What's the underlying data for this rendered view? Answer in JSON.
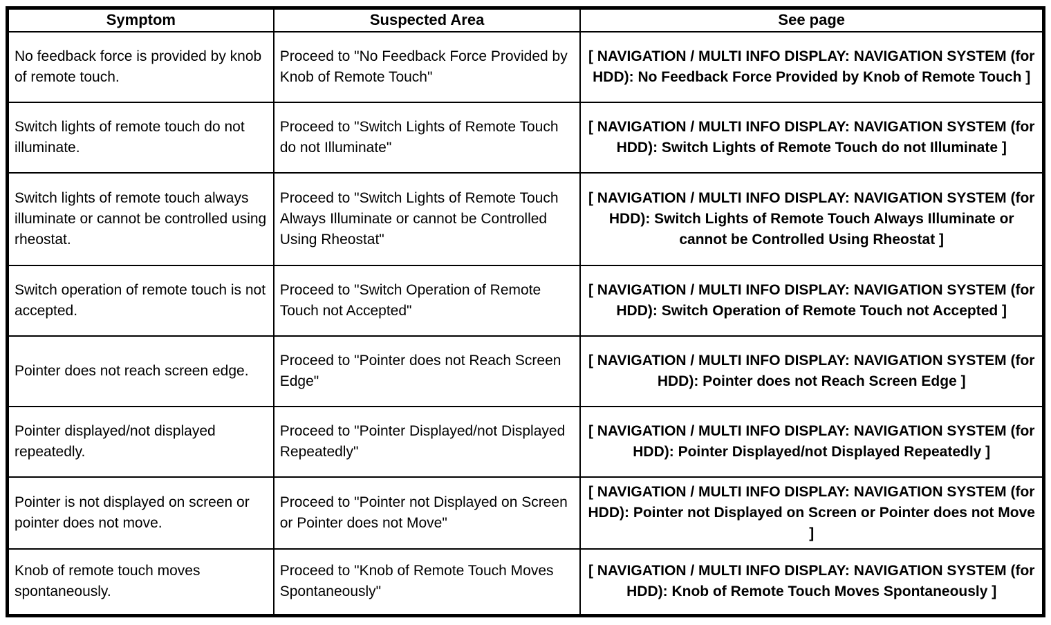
{
  "table": {
    "headers": {
      "symptom": "Symptom",
      "suspected_area": "Suspected Area",
      "see_page": "See page"
    },
    "rows": [
      {
        "symptom": "No feedback force is provided by knob of remote touch.",
        "suspected_area": "Proceed to \"No Feedback Force Provided by Knob of Remote Touch\"",
        "see_page": "[ NAVIGATION / MULTI INFO DISPLAY: NAVIGATION SYSTEM (for HDD): No Feedback Force Provided by Knob of Remote Touch ]"
      },
      {
        "symptom": "Switch lights of remote touch do not illuminate.",
        "suspected_area": "Proceed to \"Switch Lights of Remote Touch do not Illuminate\"",
        "see_page": "[ NAVIGATION / MULTI INFO DISPLAY: NAVIGATION SYSTEM (for HDD): Switch Lights of Remote Touch do not Illuminate ]"
      },
      {
        "symptom": "Switch lights of remote touch always illuminate or cannot be controlled using rheostat.",
        "suspected_area": "Proceed to \"Switch Lights of Remote Touch Always Illuminate or cannot be Controlled Using Rheostat\"",
        "see_page": "[ NAVIGATION / MULTI INFO DISPLAY: NAVIGATION SYSTEM (for HDD): Switch Lights of Remote Touch Always Illuminate or cannot be Controlled Using Rheostat ]"
      },
      {
        "symptom": "Switch operation of remote touch is not accepted.",
        "suspected_area": "Proceed to \"Switch Operation of Remote Touch not Accepted\"",
        "see_page": "[ NAVIGATION / MULTI INFO DISPLAY: NAVIGATION SYSTEM (for HDD): Switch Operation of Remote Touch not Accepted ]"
      },
      {
        "symptom": "Pointer does not reach screen edge.",
        "suspected_area": "Proceed to \"Pointer does not Reach Screen Edge\"",
        "see_page": "[ NAVIGATION / MULTI INFO DISPLAY: NAVIGATION SYSTEM (for HDD): Pointer does not Reach Screen Edge ]"
      },
      {
        "symptom": "Pointer displayed/not displayed repeatedly.",
        "suspected_area": "Proceed to \"Pointer Displayed/not Displayed Repeatedly\"",
        "see_page": "[ NAVIGATION / MULTI INFO DISPLAY: NAVIGATION SYSTEM (for HDD): Pointer Displayed/not Displayed Repeatedly ]"
      },
      {
        "symptom": "Pointer is not displayed on screen or pointer does not move.",
        "suspected_area": "Proceed to \"Pointer not Displayed on Screen or Pointer does not Move\"",
        "see_page": "[ NAVIGATION / MULTI INFO DISPLAY: NAVIGATION SYSTEM (for HDD): Pointer not Displayed on Screen or Pointer does not Move ]"
      },
      {
        "symptom": "Knob of remote touch moves spontaneously.",
        "suspected_area": "Proceed to \"Knob of Remote Touch Moves Spontaneously\"",
        "see_page": "[ NAVIGATION / MULTI INFO DISPLAY: NAVIGATION SYSTEM (for HDD): Knob of Remote Touch Moves Spontaneously ]"
      }
    ]
  }
}
